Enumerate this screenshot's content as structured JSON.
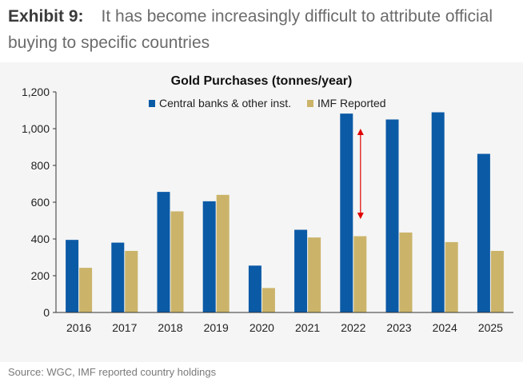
{
  "exhibit": {
    "label": "Exhibit 9:",
    "title": "It has become increasingly difficult to attribute official buying to specific countries"
  },
  "source": "Source: WGC, IMF reported country holdings",
  "colors": {
    "central_banks": "#0b5aa6",
    "imf": "#cbb46a",
    "arrow": "#e00000",
    "panel": "#f5f5f5"
  },
  "chart_data": {
    "type": "bar",
    "title": "Gold Purchases (tonnes/year)",
    "xlabel": "",
    "ylabel": "",
    "ylim": [
      0,
      1200
    ],
    "yticks": [
      0,
      200,
      400,
      600,
      800,
      1000,
      1200
    ],
    "ytick_labels": [
      "0",
      "200",
      "400",
      "600",
      "800",
      "1,000",
      "1,200"
    ],
    "categories": [
      "2016",
      "2017",
      "2018",
      "2019",
      "2020",
      "2021",
      "2022",
      "2023",
      "2024",
      "2025"
    ],
    "series": [
      {
        "name": "Central banks & other inst.",
        "values": [
          395,
          380,
          656,
          605,
          255,
          450,
          1082,
          1050,
          1089,
          863
        ]
      },
      {
        "name": "IMF Reported",
        "values": [
          243,
          335,
          550,
          640,
          133,
          408,
          415,
          435,
          383,
          335
        ]
      }
    ],
    "legend": "top-center",
    "grid": false,
    "annotation": {
      "type": "double-arrow",
      "category": "2022",
      "from_value": 1000,
      "to_value": 508
    }
  }
}
